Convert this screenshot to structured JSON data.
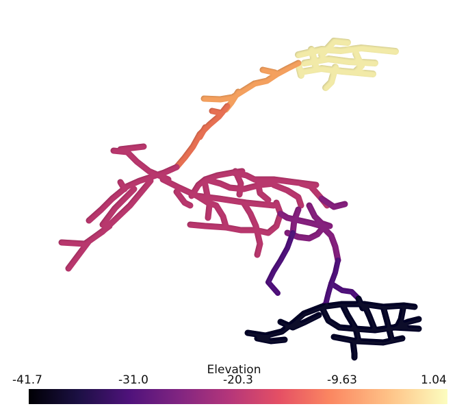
{
  "colorbar": {
    "title": "Elevation",
    "colormap": "magma",
    "min": -41.7,
    "max": 1.04,
    "ticks": [
      "-41.7",
      "-31.0",
      "-20.3",
      "-9.63",
      "1.04"
    ]
  },
  "colors": {
    "background": "#ffffff",
    "lowest": "#0b0724",
    "low": "#4a167a",
    "mid": "#b43a6e",
    "mid_high": "#e36a52",
    "high": "#f6a45e",
    "highest": "#f4f0ac"
  }
}
